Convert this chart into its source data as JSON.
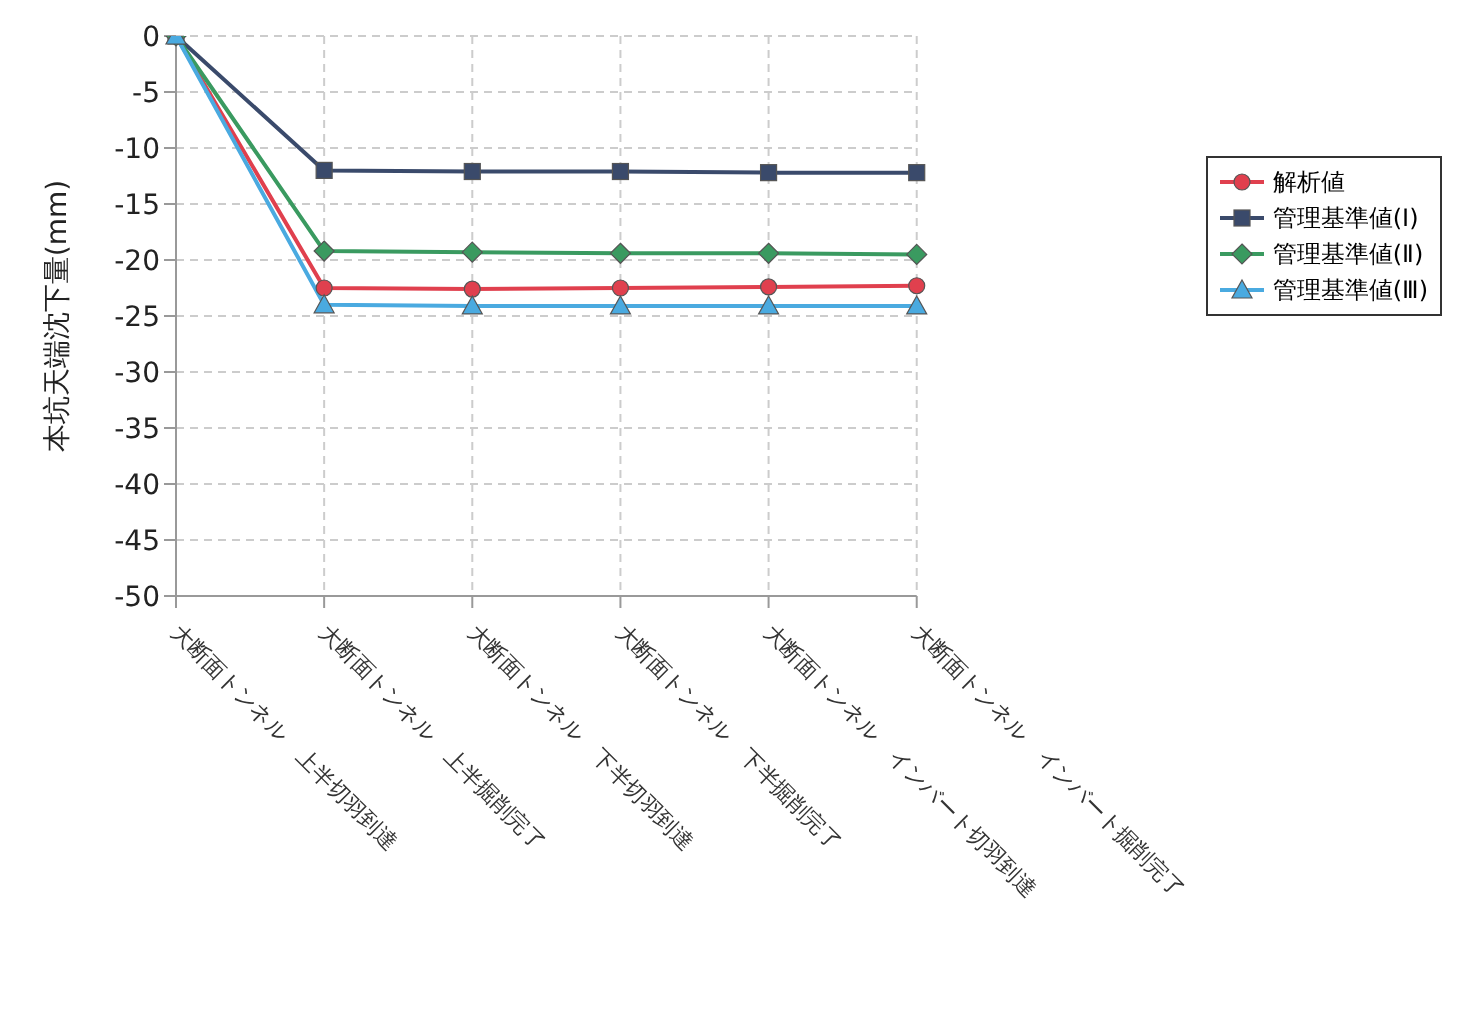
{
  "chart_data": {
    "type": "line",
    "ylabel": "本坑天端沈下量(mm)",
    "categories": [
      "大断面トンネル　上半切羽到達",
      "大断面トンネル　上半掘削完了",
      "大断面トンネル　下半切羽到達",
      "大断面トンネル　下半掘削完了",
      "大断面トンネル　インバート切羽到達",
      "大断面トンネル　インバート掘削完了"
    ],
    "series": [
      {
        "name": "解析値",
        "color": "#e0404e",
        "marker": "circle",
        "values": [
          0,
          -22.5,
          -22.6,
          -22.5,
          -22.4,
          -22.3
        ]
      },
      {
        "name": "管理基準値(Ⅰ)",
        "color": "#3a4a6b",
        "marker": "square",
        "values": [
          0,
          -12,
          -12.1,
          -12.1,
          -12.2,
          -12.2
        ]
      },
      {
        "name": "管理基準値(Ⅱ)",
        "color": "#3a9a60",
        "marker": "diamond",
        "values": [
          0,
          -19.2,
          -19.3,
          -19.4,
          -19.4,
          -19.5
        ]
      },
      {
        "name": "管理基準値(Ⅲ)",
        "color": "#4aaae0",
        "marker": "triangle",
        "values": [
          0,
          -24,
          -24.1,
          -24.1,
          -24.1,
          -24.1
        ]
      }
    ],
    "ylim": [
      -50,
      0
    ],
    "yticks": [
      0,
      -5,
      -10,
      -15,
      -20,
      -25,
      -30,
      -35,
      -40,
      -45,
      -50
    ],
    "grid": true,
    "legend": "right"
  }
}
